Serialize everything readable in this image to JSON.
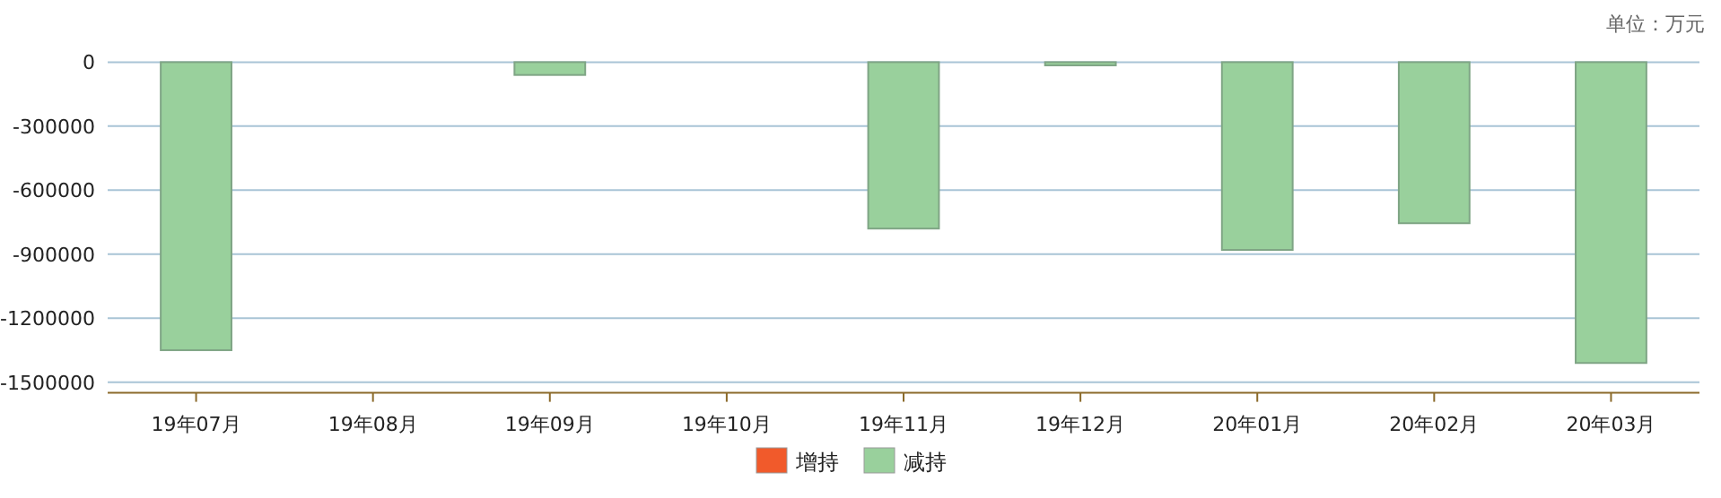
{
  "chart_data": {
    "type": "bar",
    "categories": [
      "19年07月",
      "19年08月",
      "19年09月",
      "19年10月",
      "19年11月",
      "19年12月",
      "20年01月",
      "20年02月",
      "20年03月"
    ],
    "series": [
      {
        "name": "增持",
        "color": "#f15a2b",
        "values": [
          null,
          null,
          null,
          null,
          null,
          null,
          null,
          null,
          null
        ]
      },
      {
        "name": "减持",
        "color": "#99d09c",
        "values": [
          -1350000,
          null,
          -60000,
          null,
          -780000,
          -15000,
          -880000,
          -755000,
          -1410000
        ]
      }
    ],
    "ylim": [
      -1550000,
      0
    ],
    "yticks": [
      0,
      -300000,
      -600000,
      -900000,
      -1200000,
      -1500000
    ],
    "grid": "y",
    "legend": "bottom",
    "annotations": [
      "单位：万元"
    ]
  }
}
